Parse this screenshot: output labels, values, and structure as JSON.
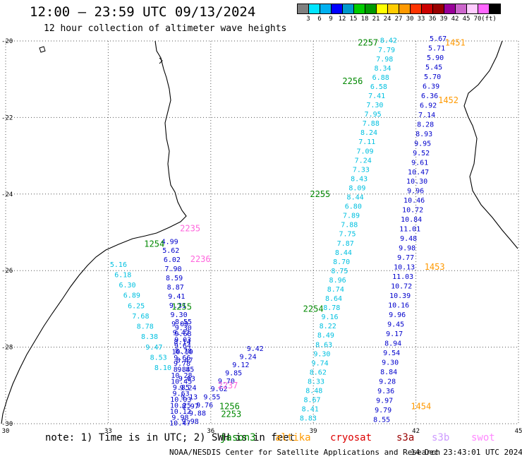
{
  "header": {
    "title": "12:00 — 23:59 UTC 09/13/2024",
    "subtitle": "12 hour collection of altimeter wave heights"
  },
  "legend": {
    "colors": [
      "#808080",
      "#00e5ff",
      "#00b0f0",
      "#0000ff",
      "#0099cc",
      "#00cc00",
      "#009900",
      "#ffff00",
      "#ffcc00",
      "#ff9900",
      "#ff3300",
      "#cc0000",
      "#990000",
      "#990099",
      "#cc66cc",
      "#ffccff",
      "#ff66ff",
      "#000000"
    ],
    "labels": [
      "3",
      "6",
      "9",
      "12",
      "15",
      "18",
      "21",
      "24",
      "27",
      "30",
      "33",
      "36",
      "39",
      "42",
      "45",
      "70",
      "(ft)"
    ]
  },
  "map": {
    "lon_range": [
      30,
      45
    ],
    "lat_range": [
      -30,
      -20
    ],
    "x_ticks": [
      {
        "lon": 30,
        "label": "30"
      },
      {
        "lon": 33,
        "label": "33"
      },
      {
        "lon": 36,
        "label": "36"
      },
      {
        "lon": 39,
        "label": "39"
      },
      {
        "lon": 42,
        "label": "42"
      },
      {
        "lon": 45,
        "label": "45"
      }
    ],
    "y_ticks": [
      {
        "lat": -20,
        "label": "-20"
      },
      {
        "lat": -22,
        "label": "-22"
      },
      {
        "lat": -24,
        "label": "-24"
      },
      {
        "lat": -26,
        "label": "-26"
      },
      {
        "lat": -28,
        "label": "-28"
      },
      {
        "lat": -30,
        "label": "-30"
      }
    ],
    "track_colors": {
      "cyan": "#00c0e0",
      "blue": "#0000cc",
      "green": "#008800",
      "orange": "#ff9900",
      "pink": "#ff66dd"
    },
    "tracks": [
      {
        "name": "track-a",
        "start": [
          38.85,
          -29.92
        ],
        "end": [
          41.2,
          -20.05
        ],
        "color_key": "cyan",
        "values": [
          "8.83",
          "8.41",
          "8.67",
          "8.48",
          "8.33",
          "8.62",
          "9.74",
          "9.30",
          "8.63",
          "8.49",
          "8.22",
          "9.16",
          "8.78",
          "8.64",
          "8.74",
          "8.96",
          "8.75",
          "8.70",
          "8.44",
          "7.87",
          "7.75",
          "7.88",
          "7.89",
          "6.80",
          "8.44",
          "8.09",
          "8.43",
          "7.33",
          "7.24",
          "7.09",
          "7.11",
          "8.24",
          "7.88",
          "7.95",
          "7.30",
          "7.41",
          "6.58",
          "6.88",
          "8.34",
          "7.98",
          "7.79",
          "8.42"
        ]
      },
      {
        "name": "track-b",
        "start": [
          41.0,
          -29.95
        ],
        "end": [
          42.65,
          -20.0
        ],
        "color_key": "blue",
        "values": [
          "8.55",
          "9.79",
          "9.97",
          "9.36",
          "9.28",
          "8.84",
          "9.30",
          "9.54",
          "8.94",
          "9.17",
          "9.45",
          "9.96",
          "10.16",
          "10.39",
          "10.72",
          "11.03",
          "10.13",
          "9.77",
          "9.98",
          "9.48",
          "11.01",
          "10.84",
          "10.72",
          "10.46",
          "9.96",
          "10.30",
          "10.47",
          "9.61",
          "9.52",
          "9.95",
          "8.93",
          "8.28",
          "7.14",
          "6.92",
          "6.36",
          "6.39",
          "5.70",
          "5.45",
          "5.90",
          "5.71",
          "5.67"
        ]
      },
      {
        "name": "track-c",
        "start": [
          35.4,
          -30.0
        ],
        "end": [
          37.3,
          -28.1
        ],
        "color_key": "blue",
        "values": [
          "9.98",
          "9.88",
          "9.76",
          "9.55",
          "9.62",
          "9.70",
          "9.85",
          "9.12",
          "9.24",
          "9.42"
        ]
      },
      {
        "name": "track-d",
        "start": [
          35.1,
          -30.05
        ],
        "end": [
          35.2,
          -27.4
        ],
        "color_key": "blue",
        "values": [
          "10.47",
          "9.98",
          "10.12",
          "10.25",
          "10.03",
          "9.63",
          "9.85",
          "10.45",
          "10.28",
          "8.84",
          "9.78",
          "9.66",
          "10.10",
          "9.64",
          "9.03",
          "9.68",
          "9.30",
          "8.55"
        ]
      },
      {
        "name": "track-e",
        "start": [
          35.4,
          -29.6
        ],
        "end": [
          34.8,
          -25.3
        ],
        "color_key": "blue",
        "values": [
          "8.97",
          "9.13",
          "9.24",
          "9.63",
          "9.85",
          "8.47",
          "8.78",
          "8.14",
          "9.47",
          "9.09",
          "9.30",
          "9.31",
          "9.41",
          "8.87",
          "8.59",
          "7.90",
          "6.02",
          "5.62",
          "4.99"
        ]
      },
      {
        "name": "track-f",
        "start": [
          34.6,
          -28.6
        ],
        "end": [
          33.3,
          -25.9
        ],
        "color_key": "cyan",
        "values": [
          "8.10",
          "8.53",
          "9.47",
          "8.38",
          "8.78",
          "7.68",
          "6.25",
          "6.89",
          "6.30",
          "6.18",
          "5.16"
        ]
      }
    ],
    "time_labels": [
      {
        "lon": 42.85,
        "lat": -20.05,
        "text": "1451",
        "color_key": "orange"
      },
      {
        "lon": 42.65,
        "lat": -21.55,
        "text": "1452",
        "color_key": "orange"
      },
      {
        "lon": 42.25,
        "lat": -25.9,
        "text": "1453",
        "color_key": "orange"
      },
      {
        "lon": 41.85,
        "lat": -29.55,
        "text": "1454",
        "color_key": "orange"
      },
      {
        "lon": 40.3,
        "lat": -20.05,
        "text": "2257",
        "color_key": "green"
      },
      {
        "lon": 39.85,
        "lat": -21.05,
        "text": "2256",
        "color_key": "green"
      },
      {
        "lon": 38.9,
        "lat": -24.0,
        "text": "2255",
        "color_key": "green"
      },
      {
        "lon": 38.7,
        "lat": -27.0,
        "text": "2254",
        "color_key": "green"
      },
      {
        "lon": 36.3,
        "lat": -29.75,
        "text": "2253",
        "color_key": "green"
      },
      {
        "lon": 36.25,
        "lat": -29.55,
        "text": "1256",
        "color_key": "green"
      },
      {
        "lon": 34.85,
        "lat": -26.95,
        "text": "1255",
        "color_key": "green"
      },
      {
        "lon": 34.05,
        "lat": -25.3,
        "text": "1254",
        "color_key": "green"
      },
      {
        "lon": 35.1,
        "lat": -24.9,
        "text": "2235",
        "color_key": "pink"
      },
      {
        "lon": 35.4,
        "lat": -25.7,
        "text": "2236",
        "color_key": "pink"
      },
      {
        "lon": 36.2,
        "lat": -29.0,
        "text": "2237",
        "color_key": "pink"
      }
    ]
  },
  "footer": {
    "note": "note:  1) Time is in UTC; 2) SWH is in feet",
    "satellites": [
      {
        "name": "jason3",
        "color": "#008800"
      },
      {
        "name": "altika",
        "color": "#ff9900"
      },
      {
        "name": "cryosat",
        "color": "#dd0000"
      },
      {
        "name": "s3a",
        "color": "#990000"
      },
      {
        "name": "s3b",
        "color": "#cc99ff"
      },
      {
        "name": "swot",
        "color": "#ff88ff"
      }
    ],
    "credit": "NOAA/NESDIS Center for Satellite Applications and Research",
    "date": "14 Dec 23:43:01 UTC 2024"
  }
}
